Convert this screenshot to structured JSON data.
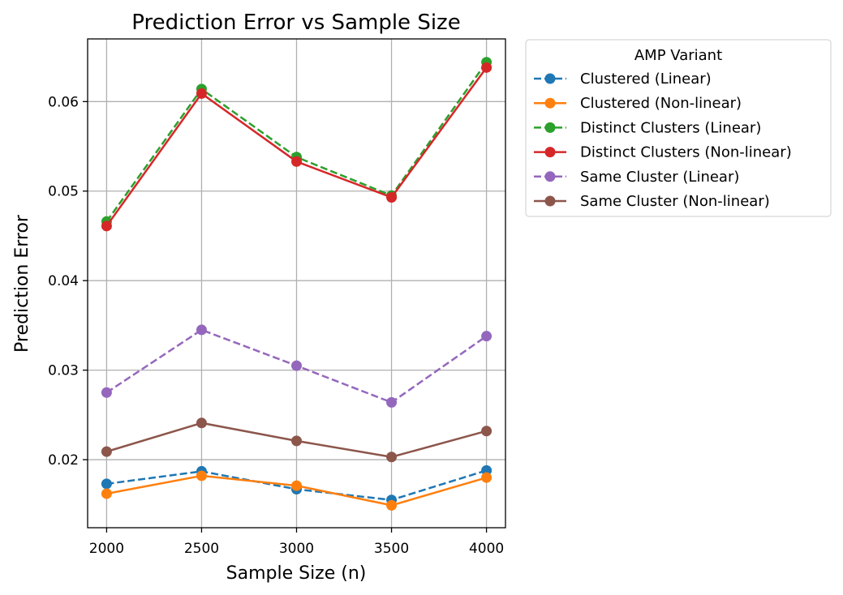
{
  "chart_data": {
    "type": "line",
    "title": "Prediction Error vs Sample Size",
    "xlabel": "Sample Size (n)",
    "ylabel": "Prediction Error",
    "x": [
      2000,
      2500,
      3000,
      3500,
      4000
    ],
    "x_ticks": [
      "2000",
      "2500",
      "3000",
      "3500",
      "4000"
    ],
    "y_ticks": [
      "0.02",
      "0.03",
      "0.04",
      "0.05",
      "0.06"
    ],
    "xlim": [
      1900,
      4100
    ],
    "ylim": [
      0.0124,
      0.067
    ],
    "grid": true,
    "legend": {
      "title": "AMP Variant",
      "placement": "outside-upper-right"
    },
    "series": [
      {
        "name": "Clustered (Linear)",
        "color": "#1f77b4",
        "linestyle": "dashed",
        "marker": "circle",
        "values": [
          0.0173,
          0.0187,
          0.0167,
          0.0155,
          0.0188
        ]
      },
      {
        "name": "Clustered (Non-linear)",
        "color": "#ff7f0e",
        "linestyle": "solid",
        "marker": "circle",
        "values": [
          0.0162,
          0.0182,
          0.0171,
          0.0149,
          0.018
        ]
      },
      {
        "name": "Distinct Clusters (Linear)",
        "color": "#2ca02c",
        "linestyle": "dashed",
        "marker": "circle",
        "values": [
          0.0466,
          0.0614,
          0.0538,
          0.0495,
          0.0644
        ]
      },
      {
        "name": "Distinct Clusters (Non-linear)",
        "color": "#d62728",
        "linestyle": "solid",
        "marker": "circle",
        "values": [
          0.0461,
          0.0609,
          0.0533,
          0.0493,
          0.0638
        ]
      },
      {
        "name": "Same Cluster (Linear)",
        "color": "#9467bd",
        "linestyle": "dashed",
        "marker": "circle",
        "values": [
          0.0275,
          0.0345,
          0.0305,
          0.0264,
          0.0338
        ]
      },
      {
        "name": "Same Cluster (Non-linear)",
        "color": "#8c564b",
        "linestyle": "solid",
        "marker": "circle",
        "values": [
          0.0209,
          0.0241,
          0.0221,
          0.0203,
          0.0232
        ]
      }
    ]
  }
}
